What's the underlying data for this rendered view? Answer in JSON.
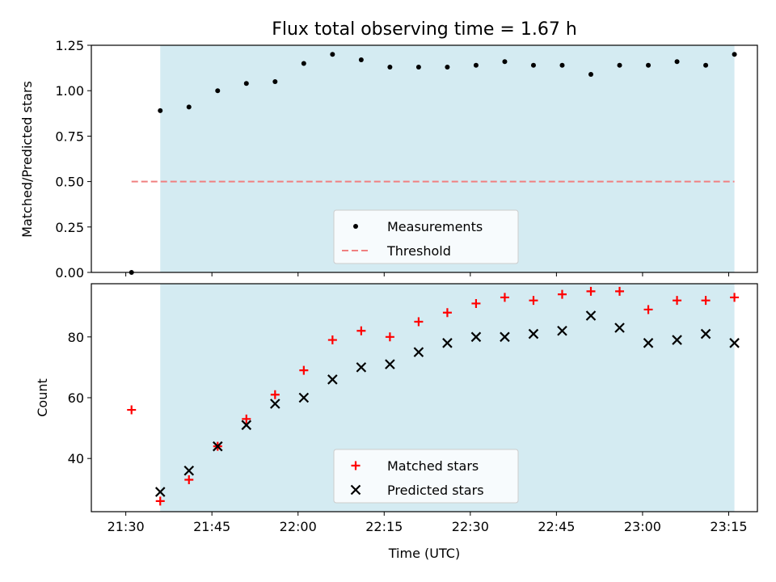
{
  "chart_data": [
    {
      "type": "scatter",
      "title": "Flux total observing time = 1.67 h",
      "ylabel": "Matched/Predicted stars",
      "xlabel": "",
      "xlim": [
        "21:24",
        "23:20"
      ],
      "ylim": [
        0,
        1.25
      ],
      "yticks": [
        "0.00",
        "0.25",
        "0.50",
        "0.75",
        "1.00",
        "1.25"
      ],
      "shaded_span": [
        "21:36",
        "23:16"
      ],
      "shade_color": "#add8e6",
      "legend_position": "lower center",
      "series": [
        {
          "name": "Measurements",
          "marker": "dot",
          "color": "#000000",
          "x": [
            "21:31",
            "21:36",
            "21:41",
            "21:46",
            "21:51",
            "21:56",
            "22:01",
            "22:06",
            "22:11",
            "22:16",
            "22:21",
            "22:26",
            "22:31",
            "22:36",
            "22:41",
            "22:46",
            "22:51",
            "22:56",
            "23:01",
            "23:06",
            "23:11",
            "23:16"
          ],
          "values": [
            0.0,
            0.89,
            0.91,
            1.0,
            1.04,
            1.05,
            1.15,
            1.2,
            1.17,
            1.13,
            1.13,
            1.13,
            1.14,
            1.16,
            1.14,
            1.14,
            1.09,
            1.14,
            1.14,
            1.16,
            1.14,
            1.2
          ]
        },
        {
          "name": "Threshold",
          "marker": "dashed-line",
          "color": "#f08080",
          "x": [
            "21:31",
            "23:16"
          ],
          "values": [
            0.5,
            0.5
          ]
        }
      ]
    },
    {
      "type": "scatter",
      "title": "",
      "ylabel": "Count",
      "xlabel": "Time (UTC)",
      "xlim": [
        "21:24",
        "23:20"
      ],
      "ylim": [
        22.5,
        97.5
      ],
      "yticks": [
        "40",
        "60",
        "80"
      ],
      "xticks": [
        "21:30",
        "21:45",
        "22:00",
        "22:15",
        "22:30",
        "22:45",
        "23:00",
        "23:15"
      ],
      "shaded_span": [
        "21:36",
        "23:16"
      ],
      "shade_color": "#add8e6",
      "legend_position": "lower center",
      "series": [
        {
          "name": "Matched stars",
          "marker": "plus",
          "color": "#ff0000",
          "x": [
            "21:31",
            "21:36",
            "21:41",
            "21:46",
            "21:51",
            "21:56",
            "22:01",
            "22:06",
            "22:11",
            "22:16",
            "22:21",
            "22:26",
            "22:31",
            "22:36",
            "22:41",
            "22:46",
            "22:51",
            "22:56",
            "23:01",
            "23:06",
            "23:11",
            "23:16"
          ],
          "values": [
            56,
            26,
            33,
            44,
            53,
            61,
            69,
            79,
            82,
            80,
            85,
            88,
            91,
            93,
            92,
            94,
            95,
            95,
            89,
            92,
            92,
            93
          ]
        },
        {
          "name": "Predicted stars",
          "marker": "x",
          "color": "#000000",
          "x": [
            "21:36",
            "21:41",
            "21:46",
            "21:51",
            "21:56",
            "22:01",
            "22:06",
            "22:11",
            "22:16",
            "22:21",
            "22:26",
            "22:31",
            "22:36",
            "22:41",
            "22:46",
            "22:51",
            "22:56",
            "23:01",
            "23:06",
            "23:11",
            "23:16"
          ],
          "values": [
            29,
            36,
            44,
            51,
            58,
            60,
            66,
            70,
            71,
            75,
            78,
            80,
            80,
            81,
            82,
            87,
            83,
            78,
            79,
            81,
            78
          ]
        }
      ]
    }
  ]
}
